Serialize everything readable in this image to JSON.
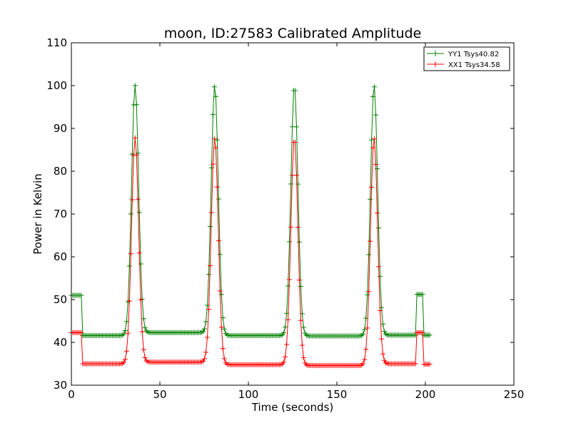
{
  "chart_data": {
    "type": "line",
    "title": "moon, ID:27583 Calibrated Amplitude",
    "xlabel": "Time (seconds)",
    "ylabel": "Power in Kelvin",
    "xlim": [
      0,
      250
    ],
    "ylim": [
      30,
      110
    ],
    "xticks": [
      0,
      50,
      100,
      150,
      200,
      250
    ],
    "yticks": [
      30,
      40,
      50,
      60,
      70,
      80,
      90,
      100,
      110
    ],
    "grid": false,
    "legend_position": "top-right",
    "marker": "+",
    "peaks": [
      36,
      81,
      126,
      171
    ],
    "series": [
      {
        "name": "YY1 Tsys40.82",
        "color": "#008000",
        "baselines": [
          41.6,
          42.3,
          41.6,
          41.5,
          41.7
        ],
        "peak_value": 100.0,
        "start_level": 51.0,
        "end_level": 41.7,
        "spike_level": 51.2,
        "spike_range": [
          195,
          199
        ]
      },
      {
        "name": "XX1 Tsys34.58",
        "color": "#ff0000",
        "baselines": [
          35.0,
          35.4,
          34.8,
          34.6,
          35.0
        ],
        "peak_value": 87.8,
        "start_level": 42.3,
        "end_level": 34.9,
        "spike_level": 42.3,
        "spike_range": [
          195,
          199
        ]
      }
    ],
    "x_start": 0,
    "x_step_initial": 6,
    "x_end": 203
  }
}
